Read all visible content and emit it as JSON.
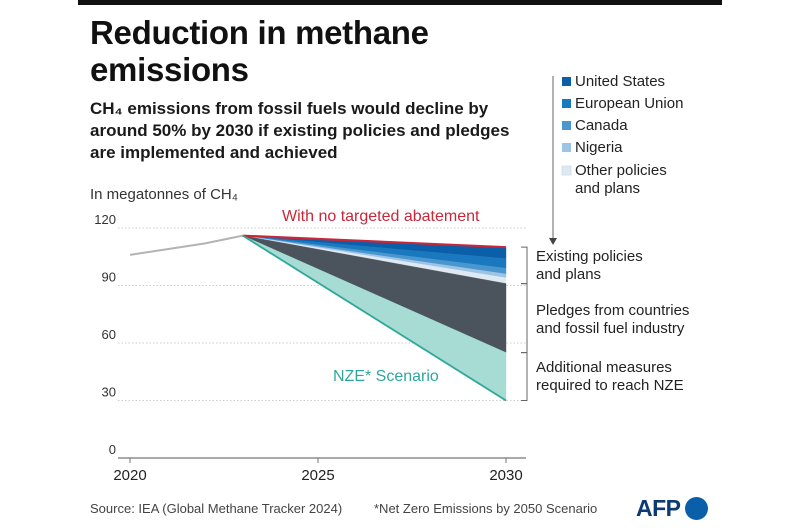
{
  "title": "Reduction in methane emissions",
  "subtitle": "CH₄ emissions from fossil fuels would decline by around 50% by 2030 if existing policies and pledges are implemented and achieved",
  "unit_label": "In megatonnes of CH₄",
  "source": "Source: IEA (Global Methane Tracker 2024)",
  "footnote": "*Net Zero Emissions by 2050 Scenario",
  "logo": "AFP",
  "colors": {
    "no_abatement": "#c8273a",
    "historical": "#b3b3b3",
    "united_states": "#0b5fa8",
    "european_union": "#1a78bf",
    "canada": "#4a96cf",
    "nigeria": "#9cc4e4",
    "other_policies": "#dfe9f3",
    "pledges": "#4b545c",
    "nze": "#a6dcd3",
    "nze_line": "#2fa79a"
  },
  "chart_data": {
    "type": "area",
    "xlabel": "",
    "ylabel": "In megatonnes of CH₄",
    "xlim": [
      2020,
      2030
    ],
    "ylim": [
      0,
      120
    ],
    "x_ticks": [
      2020,
      2025,
      2030
    ],
    "y_ticks": [
      0,
      30,
      60,
      90,
      120
    ],
    "grid": true,
    "historical": {
      "x": [
        2020,
        2021,
        2022,
        2023
      ],
      "y": [
        106,
        109,
        112,
        116
      ]
    },
    "bands_2030": [
      {
        "name": "United States",
        "from": 110,
        "to": 104
      },
      {
        "name": "European Union",
        "from": 104,
        "to": 99
      },
      {
        "name": "Canada",
        "from": 99,
        "to": 96
      },
      {
        "name": "Nigeria",
        "from": 96,
        "to": 94
      },
      {
        "name": "Other policies and plans",
        "from": 94,
        "to": 91
      },
      {
        "name": "Pledges from countries and fossil fuel industry",
        "from": 91,
        "to": 55
      },
      {
        "name": "Additional measures required to reach NZE",
        "from": 55,
        "to": 30
      }
    ],
    "projection_start": {
      "x": 2023,
      "y": 116
    },
    "projection_end_x": 2030,
    "annotations": {
      "no_abatement": "With no targeted abatement",
      "nze": "NZE* Scenario"
    },
    "legend": [
      "United States",
      "European Union",
      "Canada",
      "Nigeria",
      "Other policies and plans"
    ],
    "bracket_labels": {
      "existing": "Existing policies and plans",
      "pledges": "Pledges from countries and fossil fuel industry",
      "additional": "Additional measures required to reach NZE"
    }
  }
}
